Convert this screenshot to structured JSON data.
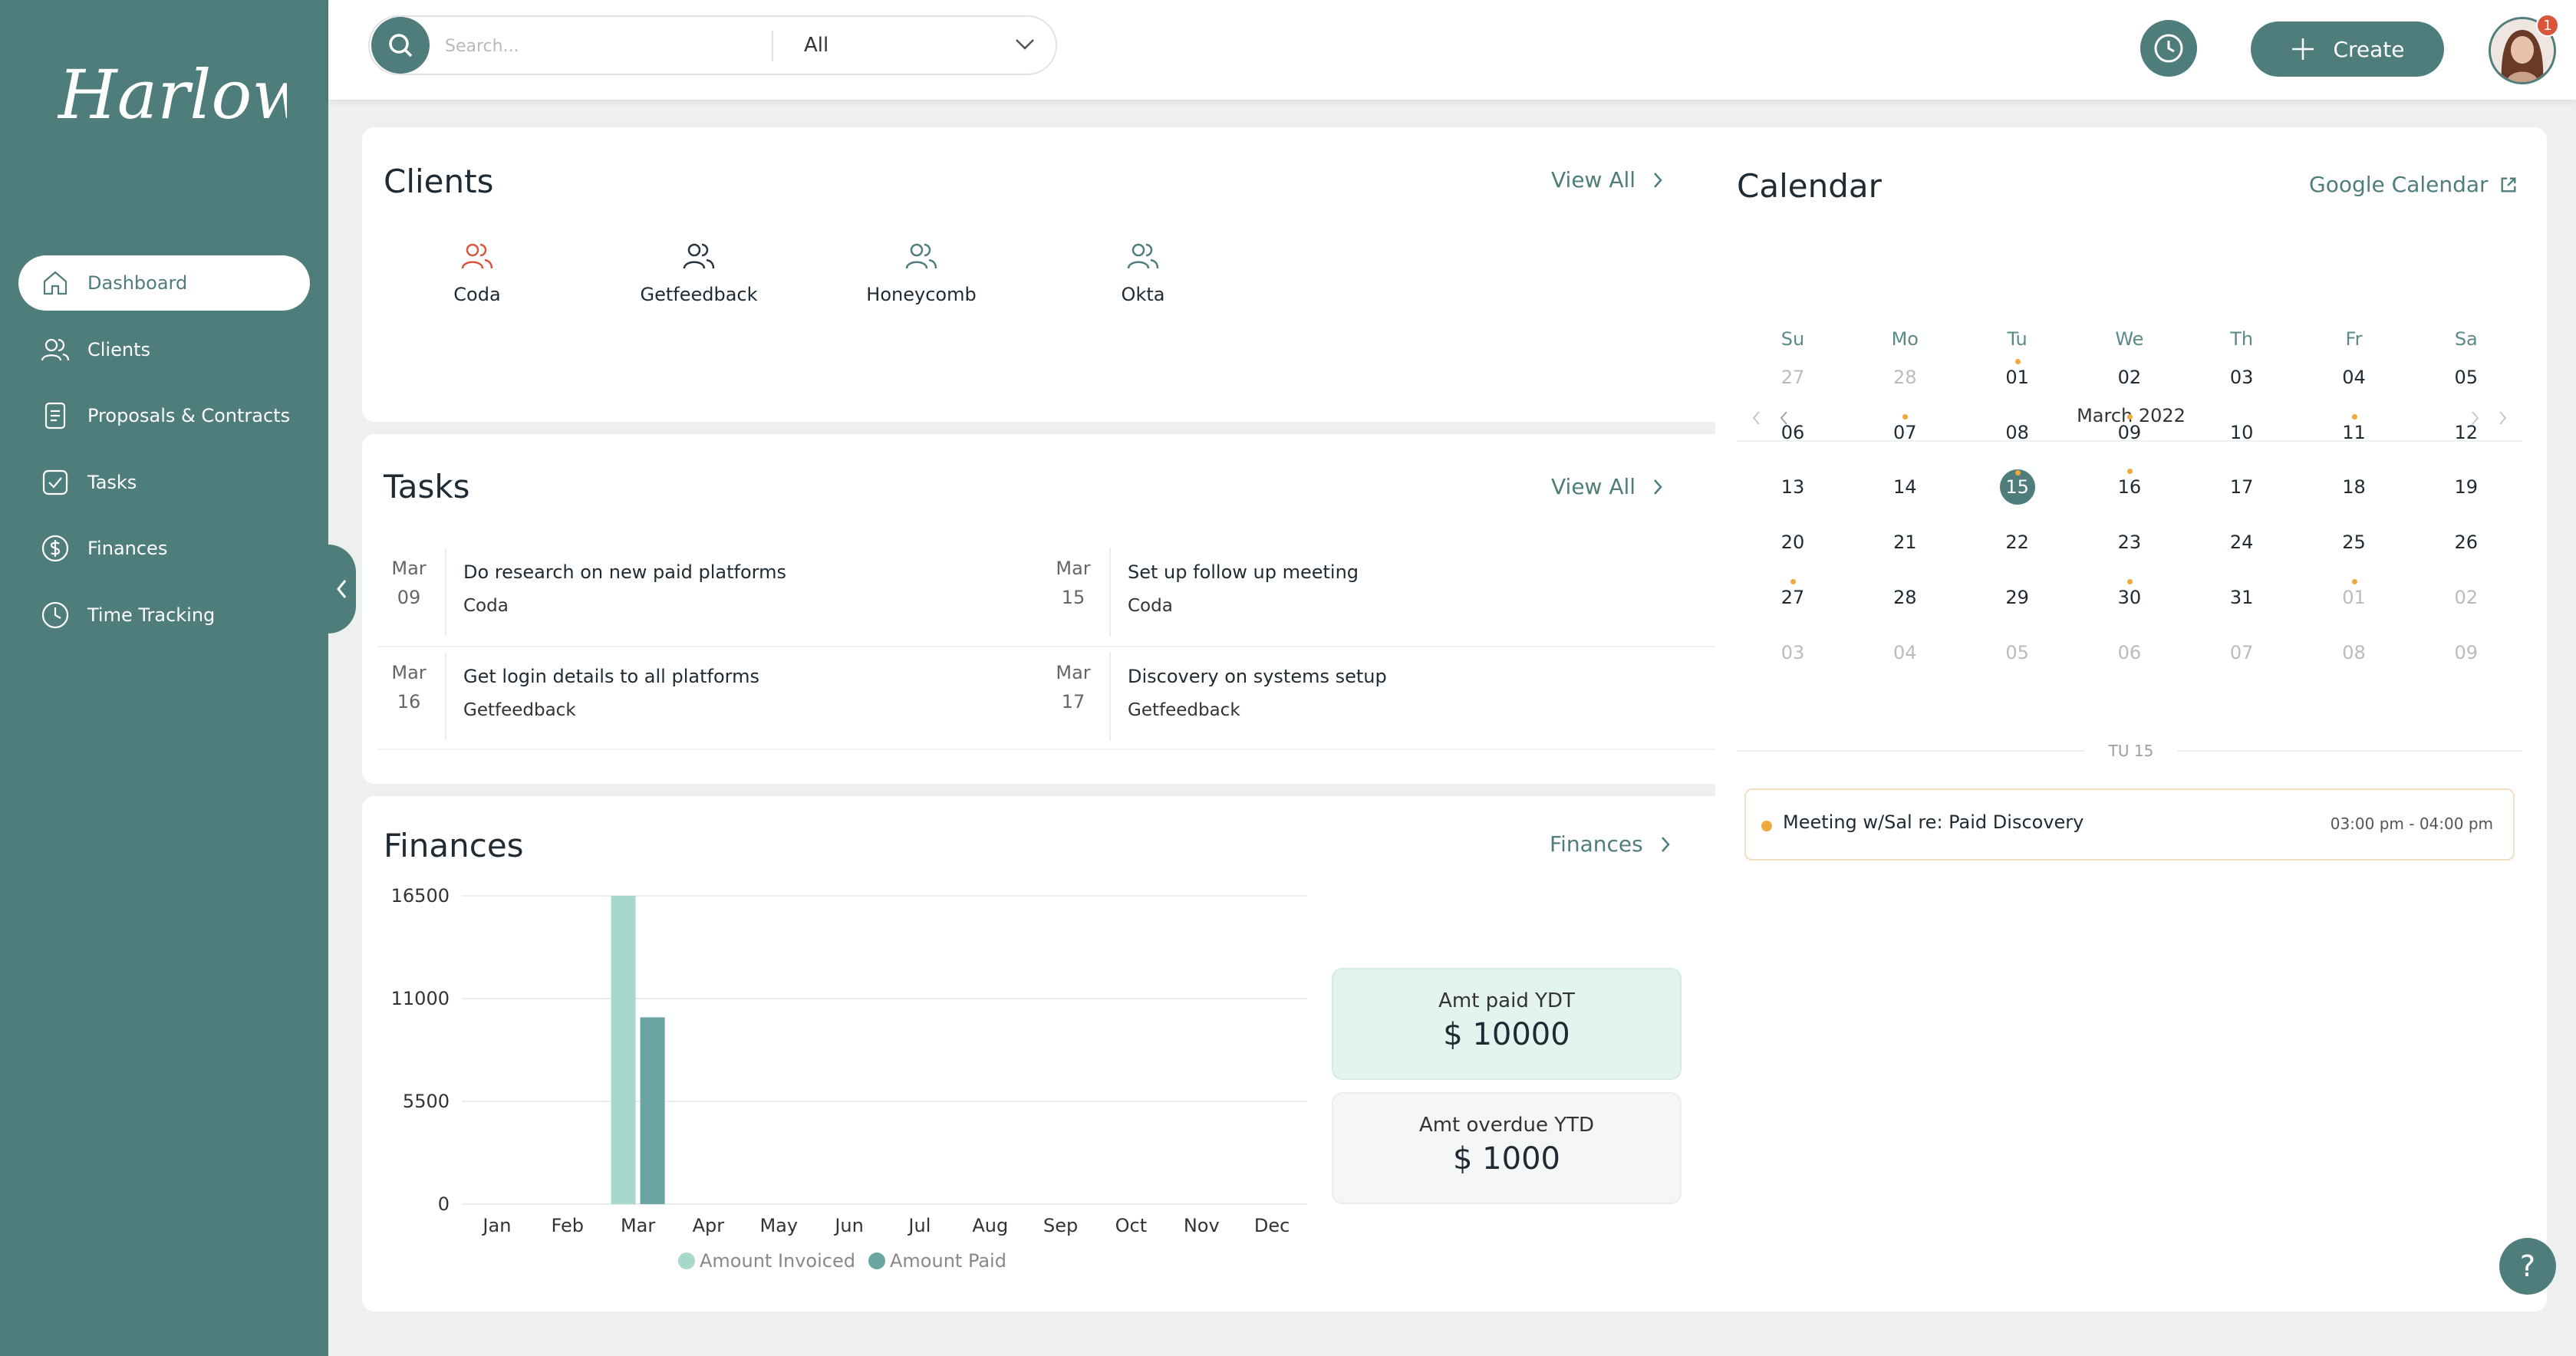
{
  "brand": {
    "name": "Harlow",
    "accent": "#4f7d7b"
  },
  "sidebar": {
    "items": [
      {
        "label": "Dashboard",
        "icon": "home-icon"
      },
      {
        "label": "Clients",
        "icon": "users-icon"
      },
      {
        "label": "Proposals & Contracts",
        "icon": "document-icon"
      },
      {
        "label": "Tasks",
        "icon": "checkbox-icon"
      },
      {
        "label": "Finances",
        "icon": "dollar-icon"
      },
      {
        "label": "Time Tracking",
        "icon": "clock-icon"
      }
    ],
    "active": "Dashboard"
  },
  "topbar": {
    "search_placeholder": "Search...",
    "filter_value": "All",
    "create_label": "Create",
    "notification_count": "1"
  },
  "clients": {
    "title": "Clients",
    "view_all": "View All",
    "items": [
      {
        "name": "Coda",
        "icon_color": "#d9553b"
      },
      {
        "name": "Getfeedback",
        "icon_color": "#2a3440"
      },
      {
        "name": "Honeycomb",
        "icon_color": "#4f7d7b"
      },
      {
        "name": "Okta",
        "icon_color": "#4f7d7b"
      }
    ]
  },
  "tasks": {
    "title": "Tasks",
    "view_all": "View All",
    "items": [
      {
        "month": "Mar",
        "day": "09",
        "title": "Do research on new paid platforms",
        "client": "Coda"
      },
      {
        "month": "Mar",
        "day": "15",
        "title": "Set up follow up meeting",
        "client": "Coda"
      },
      {
        "month": "Mar",
        "day": "16",
        "title": "Get login details to all platforms",
        "client": "Getfeedback"
      },
      {
        "month": "Mar",
        "day": "17",
        "title": "Discovery on systems setup",
        "client": "Getfeedback"
      }
    ]
  },
  "finances": {
    "title": "Finances",
    "link": "Finances",
    "paid_label": "Amt paid YDT",
    "paid_value": "$ 10000",
    "overdue_label": "Amt overdue YTD",
    "overdue_value": "$ 1000",
    "colors": {
      "invoiced": "#a8d8cb",
      "paid": "#6aa5a1"
    }
  },
  "chart_data": {
    "type": "bar",
    "categories": [
      "Jan",
      "Feb",
      "Mar",
      "Apr",
      "May",
      "Jun",
      "Jul",
      "Aug",
      "Sep",
      "Oct",
      "Nov",
      "Dec"
    ],
    "series": [
      {
        "name": "Amount Invoiced",
        "values": [
          0,
          0,
          16500,
          0,
          0,
          0,
          0,
          0,
          0,
          0,
          0,
          0
        ]
      },
      {
        "name": "Amount Paid",
        "values": [
          0,
          0,
          10000,
          0,
          0,
          0,
          0,
          0,
          0,
          0,
          0,
          0
        ]
      }
    ],
    "yticks": [
      0,
      5500,
      11000,
      16500
    ],
    "ylim": [
      0,
      16500
    ],
    "legend": "bottom",
    "grid": true
  },
  "calendar": {
    "title": "Calendar",
    "google_link": "Google Calendar",
    "month_label": "March 2022",
    "weekdays": [
      "Su",
      "Mo",
      "Tu",
      "We",
      "Th",
      "Fr",
      "Sa"
    ],
    "weeks": [
      [
        "27",
        "28",
        "01",
        "02",
        "03",
        "04",
        "05"
      ],
      [
        "06",
        "07",
        "08",
        "09",
        "10",
        "11",
        "12"
      ],
      [
        "13",
        "14",
        "15",
        "16",
        "17",
        "18",
        "19"
      ],
      [
        "20",
        "21",
        "22",
        "23",
        "24",
        "25",
        "26"
      ],
      [
        "27",
        "28",
        "29",
        "30",
        "31",
        "01",
        "02"
      ],
      [
        "03",
        "04",
        "05",
        "06",
        "07",
        "08",
        "09"
      ]
    ],
    "muted": [
      [
        0,
        0
      ],
      [
        0,
        1
      ],
      [
        4,
        5
      ],
      [
        4,
        6
      ],
      [
        5,
        0
      ],
      [
        5,
        1
      ],
      [
        5,
        2
      ],
      [
        5,
        3
      ],
      [
        5,
        4
      ],
      [
        5,
        5
      ],
      [
        5,
        6
      ]
    ],
    "dots": [
      [
        0,
        2
      ],
      [
        1,
        1
      ],
      [
        1,
        3
      ],
      [
        1,
        5
      ],
      [
        2,
        2
      ],
      [
        2,
        3
      ],
      [
        4,
        0
      ],
      [
        4,
        3
      ],
      [
        4,
        5
      ]
    ],
    "today": [
      2,
      2
    ],
    "selected_day_label": "TU 15",
    "event": {
      "title": "Meeting w/Sal re: Paid Discovery",
      "time": "03:00 pm - 04:00 pm",
      "color": "#f0a93c"
    }
  }
}
